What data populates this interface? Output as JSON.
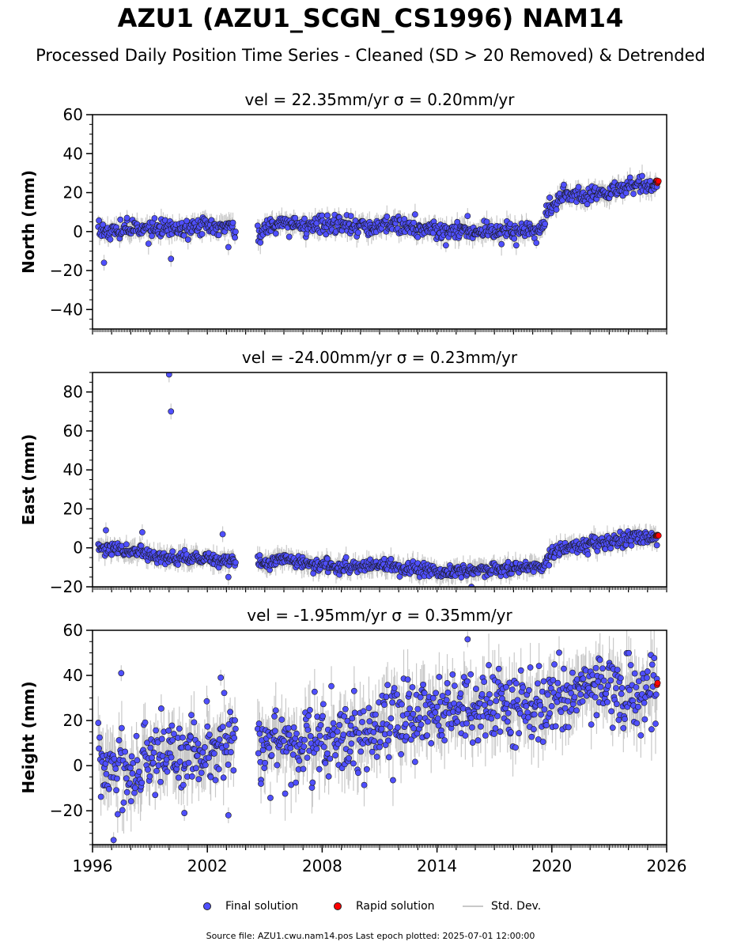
{
  "title": "AZU1 (AZU1_SCGN_CS1996) NAM14",
  "subtitle": "Processed Daily Position Time Series - Cleaned (SD > 20 Removed) & Detrended",
  "legend": {
    "final": "Final solution",
    "rapid": "Rapid solution",
    "std": "Std. Dev."
  },
  "footer": "Source file: AZU1.cwu.nam14.pos  Last epoch plotted: 2025-07-01 12:00:00",
  "colors": {
    "final": "#4f4fff",
    "rapid": "#ff0000",
    "std": "#c9c9c9"
  },
  "chart_data": [
    {
      "type": "scatter",
      "title": "vel = 22.35mm/yr   σ = 0.20mm/yr",
      "ylabel": "North (mm)",
      "xlim": [
        1996,
        2026
      ],
      "ylim": [
        -50,
        60
      ],
      "yticks": [
        -40,
        -20,
        0,
        20,
        40,
        60
      ],
      "xticks": [
        1996,
        2002,
        2008,
        2014,
        2020,
        2026
      ],
      "grid": false,
      "series": [
        {
          "name": "Final solution",
          "trend": [
            [
              1996.3,
              0
            ],
            [
              1998,
              1
            ],
            [
              2000,
              1.5
            ],
            [
              2002,
              2.5
            ],
            [
              2003.3,
              3.5
            ],
            [
              2003.4,
              -1
            ],
            [
              2004.7,
              1
            ],
            [
              2006,
              4
            ],
            [
              2008,
              4
            ],
            [
              2010,
              2
            ],
            [
              2012,
              3
            ],
            [
              2014,
              0.5
            ],
            [
              2016,
              0
            ],
            [
              2018,
              0.5
            ],
            [
              2019.6,
              1.5
            ],
            [
              2019.7,
              10
            ],
            [
              2020,
              13
            ],
            [
              2020.6,
              18
            ],
            [
              2022,
              19
            ],
            [
              2023,
              20
            ],
            [
              2024,
              23
            ],
            [
              2025.5,
              25
            ]
          ],
          "scatter": 2.2,
          "outliers": [
            [
              1996.6,
              -16
            ],
            [
              2000.1,
              -14
            ],
            [
              1997.8,
              7
            ],
            [
              2003.1,
              -8
            ],
            [
              2015.6,
              8
            ],
            [
              2009.5,
              8
            ]
          ]
        },
        {
          "name": "Rapid solution",
          "trend": [
            [
              2025.45,
              26
            ],
            [
              2025.6,
              26
            ]
          ],
          "scatter": 0.5,
          "outliers": []
        }
      ]
    },
    {
      "type": "scatter",
      "title": "vel = -24.00mm/yr   σ = 0.23mm/yr",
      "ylabel": "East (mm)",
      "xlim": [
        1996,
        2026
      ],
      "ylim": [
        -20,
        90
      ],
      "yticks": [
        -20,
        0,
        20,
        40,
        60,
        80
      ],
      "xticks": [
        1996,
        2002,
        2008,
        2014,
        2020,
        2026
      ],
      "grid": false,
      "series": [
        {
          "name": "Final solution",
          "trend": [
            [
              1996.3,
              0
            ],
            [
              1998,
              -1
            ],
            [
              2000,
              -5
            ],
            [
              2002,
              -6
            ],
            [
              2003.4,
              -7
            ],
            [
              2004.7,
              -8
            ],
            [
              2006,
              -6
            ],
            [
              2008,
              -9
            ],
            [
              2010,
              -10
            ],
            [
              2011.5,
              -8
            ],
            [
              2012,
              -10
            ],
            [
              2014,
              -12
            ],
            [
              2016,
              -12
            ],
            [
              2018,
              -11
            ],
            [
              2019.5,
              -10
            ],
            [
              2020,
              -3
            ],
            [
              2020.7,
              0
            ],
            [
              2022,
              2
            ],
            [
              2023,
              3
            ],
            [
              2024,
              5
            ],
            [
              2025.5,
              6
            ]
          ],
          "scatter": 1.8,
          "outliers": [
            [
              2000,
              89
            ],
            [
              2000.1,
              70
            ],
            [
              1996.7,
              9
            ],
            [
              1998.6,
              8
            ],
            [
              2002.8,
              7
            ],
            [
              2015.8,
              -20
            ],
            [
              2003.1,
              -15
            ]
          ]
        },
        {
          "name": "Rapid solution",
          "trend": [
            [
              2025.45,
              6.5
            ],
            [
              2025.6,
              6.5
            ]
          ],
          "scatter": 0.4,
          "outliers": []
        }
      ]
    },
    {
      "type": "scatter",
      "title": "vel = -1.95mm/yr   σ = 0.35mm/yr",
      "ylabel": "Height (mm)",
      "xlim": [
        1996,
        2026
      ],
      "ylim": [
        -35,
        60
      ],
      "yticks": [
        -20,
        0,
        20,
        40,
        60
      ],
      "xticks": [
        1996,
        2002,
        2008,
        2014,
        2020,
        2026
      ],
      "grid": false,
      "series": [
        {
          "name": "Final solution",
          "trend": [
            [
              1996.3,
              0
            ],
            [
              1998,
              0
            ],
            [
              2000,
              5
            ],
            [
              2002,
              8
            ],
            [
              2003.4,
              10
            ],
            [
              2004.7,
              8
            ],
            [
              2006,
              10
            ],
            [
              2008,
              11
            ],
            [
              2010,
              12
            ],
            [
              2012,
              20
            ],
            [
              2014,
              24
            ],
            [
              2016,
              27
            ],
            [
              2018,
              25
            ],
            [
              2020,
              30
            ],
            [
              2022,
              33
            ],
            [
              2024,
              32
            ],
            [
              2025.5,
              33
            ]
          ],
          "scatter": 8,
          "outliers": [
            [
              1997.5,
              41
            ],
            [
              2002.7,
              39
            ],
            [
              2015.6,
              56
            ],
            [
              1997.1,
              -33
            ],
            [
              2000.8,
              -21
            ],
            [
              2003.1,
              -22
            ],
            [
              2004.8,
              -8
            ]
          ]
        },
        {
          "name": "Rapid solution",
          "trend": [
            [
              2025.5,
              33
            ],
            [
              2025.55,
              41
            ]
          ],
          "scatter": 2,
          "outliers": []
        }
      ]
    }
  ]
}
